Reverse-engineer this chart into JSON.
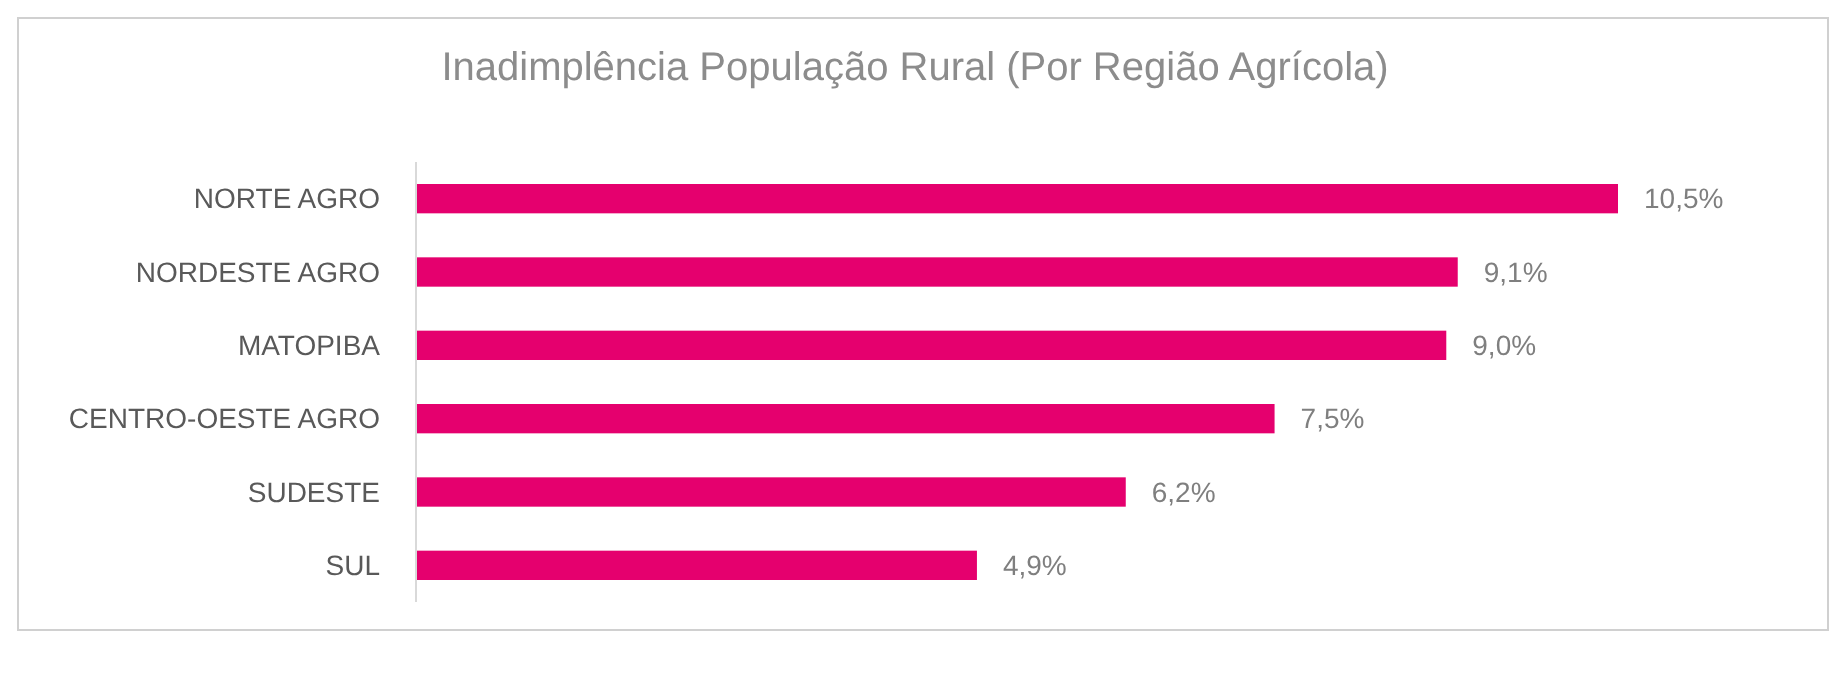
{
  "chart_data": {
    "type": "bar",
    "orientation": "horizontal",
    "title": "Inadimplência População Rural (Por Região Agrícola)",
    "categories": [
      "NORTE AGRO",
      "NORDESTE AGRO",
      "MATOPIBA",
      "CENTRO-OESTE AGRO",
      "SUDESTE",
      "SUL"
    ],
    "values": [
      10.5,
      9.1,
      9.0,
      7.5,
      6.2,
      4.9
    ],
    "value_labels": [
      "10,5%",
      "9,1%",
      "9,0%",
      "7,5%",
      "6,2%",
      "4,9%"
    ],
    "color": "#e5006e"
  }
}
